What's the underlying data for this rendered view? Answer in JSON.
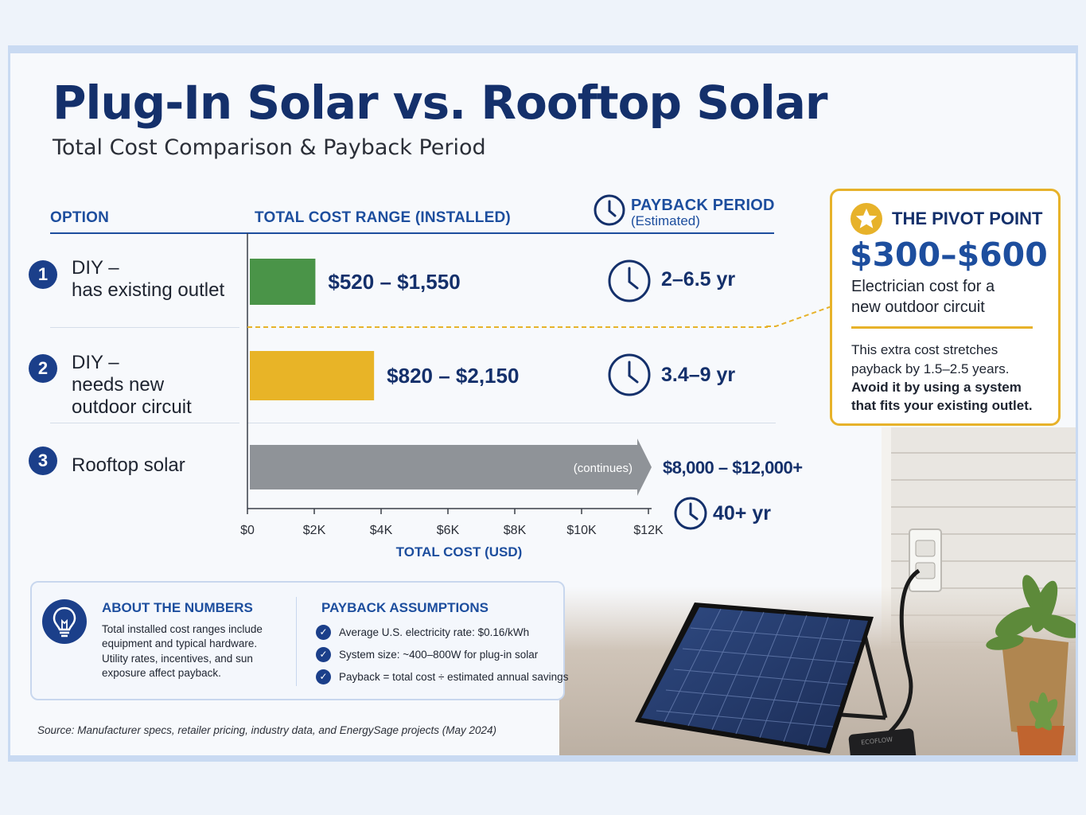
{
  "title": "Plug-In Solar vs. Rooftop Solar",
  "subtitle": "Total Cost Comparison & Payback Period",
  "columns": {
    "option": "OPTION",
    "cost": "TOTAL COST RANGE (INSTALLED)",
    "payback": "PAYBACK PERIOD",
    "payback_note": "(Estimated)"
  },
  "chart_data": {
    "type": "bar",
    "title": "",
    "xlabel": "TOTAL COST (USD)",
    "ylabel": "OPTION",
    "xlim": [
      0,
      12000
    ],
    "x_ticks": [
      0,
      2000,
      4000,
      6000,
      8000,
      10000,
      12000
    ],
    "x_tick_labels": [
      "$0",
      "$2K",
      "$4K",
      "$6K",
      "$8K",
      "$10K",
      "$12K"
    ],
    "grid": false,
    "categories": [
      "DIY – has existing outlet",
      "DIY – needs new outdoor circuit",
      "Rooftop solar"
    ],
    "series": [
      {
        "values": [
          {
            "number": "1",
            "line1": "DIY –",
            "line2": "has existing outlet",
            "line3": "",
            "low": 520,
            "high": 1550,
            "range_label": "$520 – $1,550",
            "payback": "2–6.5 yr",
            "color": "#4a9448"
          },
          {
            "number": "2",
            "line1": "DIY –",
            "line2": "needs new",
            "line3": "outdoor circuit",
            "low": 820,
            "high": 2150,
            "range_label": "$820 – $2,150",
            "payback": "3.4–9 yr",
            "color": "#e8b427"
          },
          {
            "number": "3",
            "line1": "Rooftop solar",
            "line2": "",
            "line3": "",
            "low": 8000,
            "high": 12000,
            "range_label": "$8,000 – $12,000+",
            "payback": "40+ yr",
            "color": "#8f9398",
            "continues_label": "(continues)"
          }
        ]
      }
    ]
  },
  "pivot": {
    "heading": "THE PIVOT POINT",
    "amount": "$300–$600",
    "sub_line1": "Electrician cost for a",
    "sub_line2": "new outdoor circuit",
    "note_line1": "This extra cost stretches",
    "note_line2": "payback by 1.5–2.5 years.",
    "note_line3": "Avoid it by using a system",
    "note_line4": "that fits your existing outlet.",
    "accent": "#e7b22a"
  },
  "about": {
    "heading": "ABOUT THE NUMBERS",
    "line1": "Total installed cost ranges include",
    "line2": "equipment and typical hardware.",
    "line3": "Utility rates, incentives, and sun",
    "line4": "exposure affect payback."
  },
  "assumptions": {
    "heading": "PAYBACK ASSUMPTIONS",
    "items": [
      "Average U.S. electricity rate: $0.16/kWh",
      "System size: ~400–800W for plug-in solar",
      "Payback = total cost ÷ estimated annual savings"
    ]
  },
  "source": "Source: Manufacturer specs, retailer pricing, industry data, and EnergySage projects (May 2024)",
  "panel_brand": "ECOFLOW"
}
